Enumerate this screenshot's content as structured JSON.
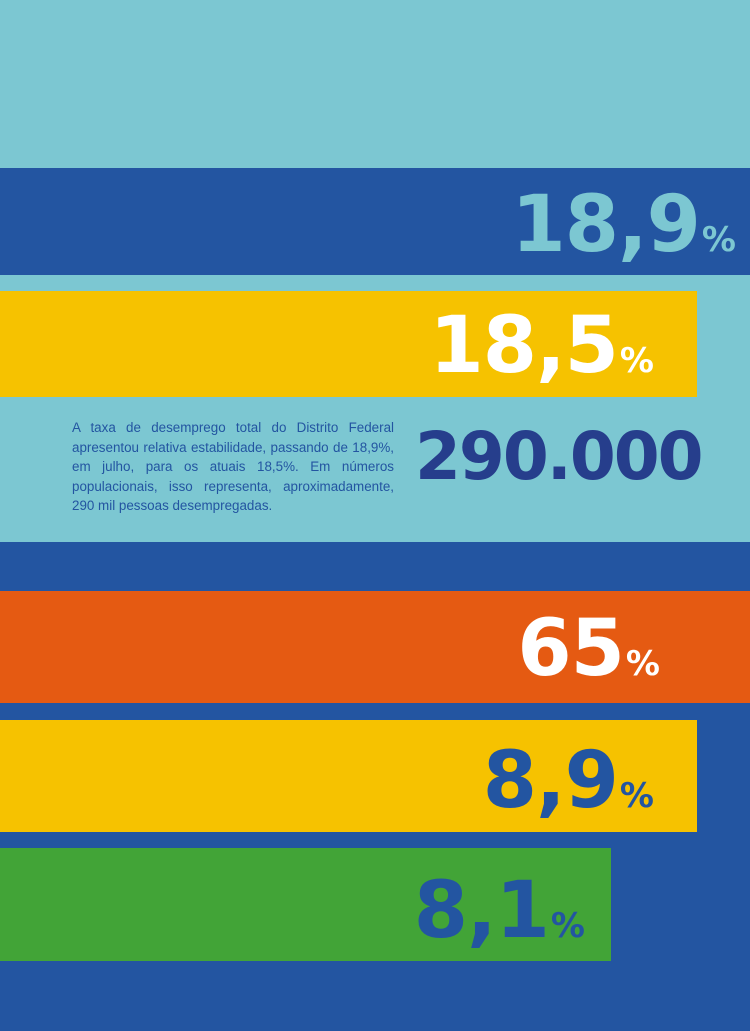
{
  "colors": {
    "light_blue": "#7cc7d2",
    "dark_blue": "#2355a1",
    "navy": "#263e8c",
    "yellow": "#f6c200",
    "orange": "#e55a12",
    "green": "#42a437",
    "white": "#ffffff"
  },
  "stats": {
    "stat1": {
      "number": "18,9",
      "unit": "%"
    },
    "stat2": {
      "number": "18,5",
      "unit": "%"
    },
    "stat3": {
      "number": "290.000"
    },
    "stat4": {
      "number": "65",
      "unit": "%"
    },
    "stat5": {
      "number": "8,9",
      "unit": "%"
    },
    "stat6": {
      "number": "8,1",
      "unit": "%"
    }
  },
  "paragraph": "A taxa de desemprego total do Distrito Federal apresentou relativa estabilidade, passando de 18,9%, em julho, para os atuais 18,5%. Em números populacionais, isso representa, aproximadamente, 290 mil pessoas desempregadas."
}
